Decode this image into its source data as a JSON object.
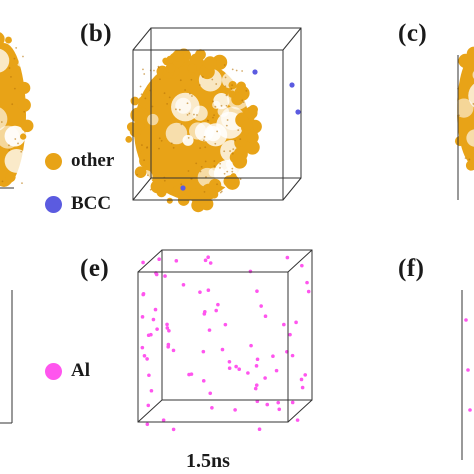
{
  "panels": {
    "b": {
      "label": "(b)"
    },
    "c": {
      "label": "(c)"
    },
    "e": {
      "label": "(e)",
      "time": "1.5ns"
    },
    "f": {
      "label": "(f)"
    }
  },
  "legend_top": [
    {
      "label": "other",
      "color": "#e8a317"
    },
    {
      "label": "BCC",
      "color": "#5b5be0"
    }
  ],
  "legend_bottom": [
    {
      "label": "Al",
      "color": "#ff55ee"
    }
  ],
  "colors": {
    "cluster": "#e8a317",
    "cluster_dark": "#b8750a",
    "bcc": "#5b5be0",
    "al": "#ff55ee",
    "edge": "#333333"
  }
}
